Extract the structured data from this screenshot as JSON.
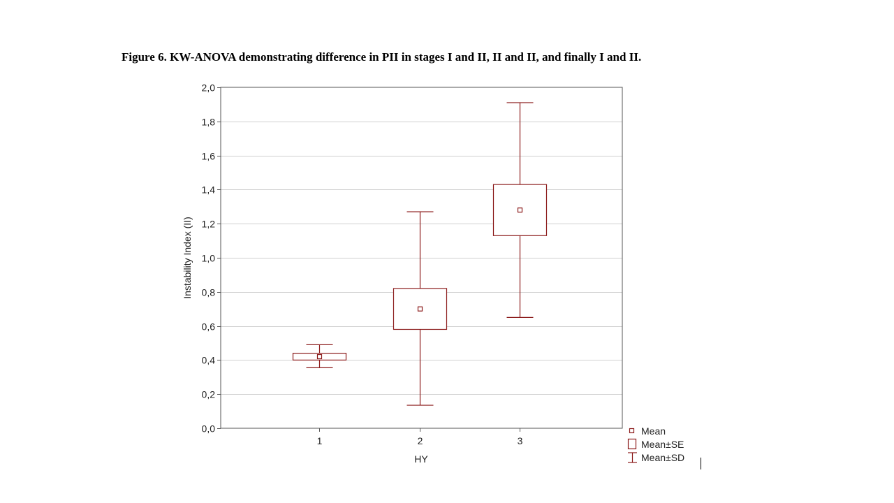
{
  "caption": "Figure 6. KW-ANOVA demonstrating difference in PII in stages I and II, II and II, and finally I and II.",
  "colors": {
    "series": "#8b1a1a",
    "grid": "#d0d0d0",
    "axis": "#555555"
  },
  "chart_data": {
    "type": "box",
    "title": "",
    "xlabel": "HY",
    "ylabel": "Instability Index (II)",
    "ylim": [
      0,
      2
    ],
    "yticks": [
      "0,0",
      "0,2",
      "0,4",
      "0,6",
      "0,8",
      "1,0",
      "1,2",
      "1,4",
      "1,6",
      "1,8",
      "2,0"
    ],
    "ytick_values": [
      0,
      0.2,
      0.4,
      0.6,
      0.8,
      1.0,
      1.2,
      1.4,
      1.6,
      1.8,
      2.0
    ],
    "categories": [
      "1",
      "2",
      "3"
    ],
    "grid": true,
    "legend_position": "bottom-right, outside plot",
    "legend": [
      "Mean",
      "Mean±SE",
      "Mean±SD"
    ],
    "groups": [
      {
        "category": "1",
        "mean": 0.42,
        "se_low": 0.4,
        "se_high": 0.44,
        "sd_low": 0.355,
        "sd_high": 0.49
      },
      {
        "category": "2",
        "mean": 0.7,
        "se_low": 0.58,
        "se_high": 0.82,
        "sd_low": 0.135,
        "sd_high": 1.27
      },
      {
        "category": "3",
        "mean": 1.28,
        "se_low": 1.13,
        "se_high": 1.43,
        "sd_low": 0.65,
        "sd_high": 1.91
      }
    ]
  }
}
